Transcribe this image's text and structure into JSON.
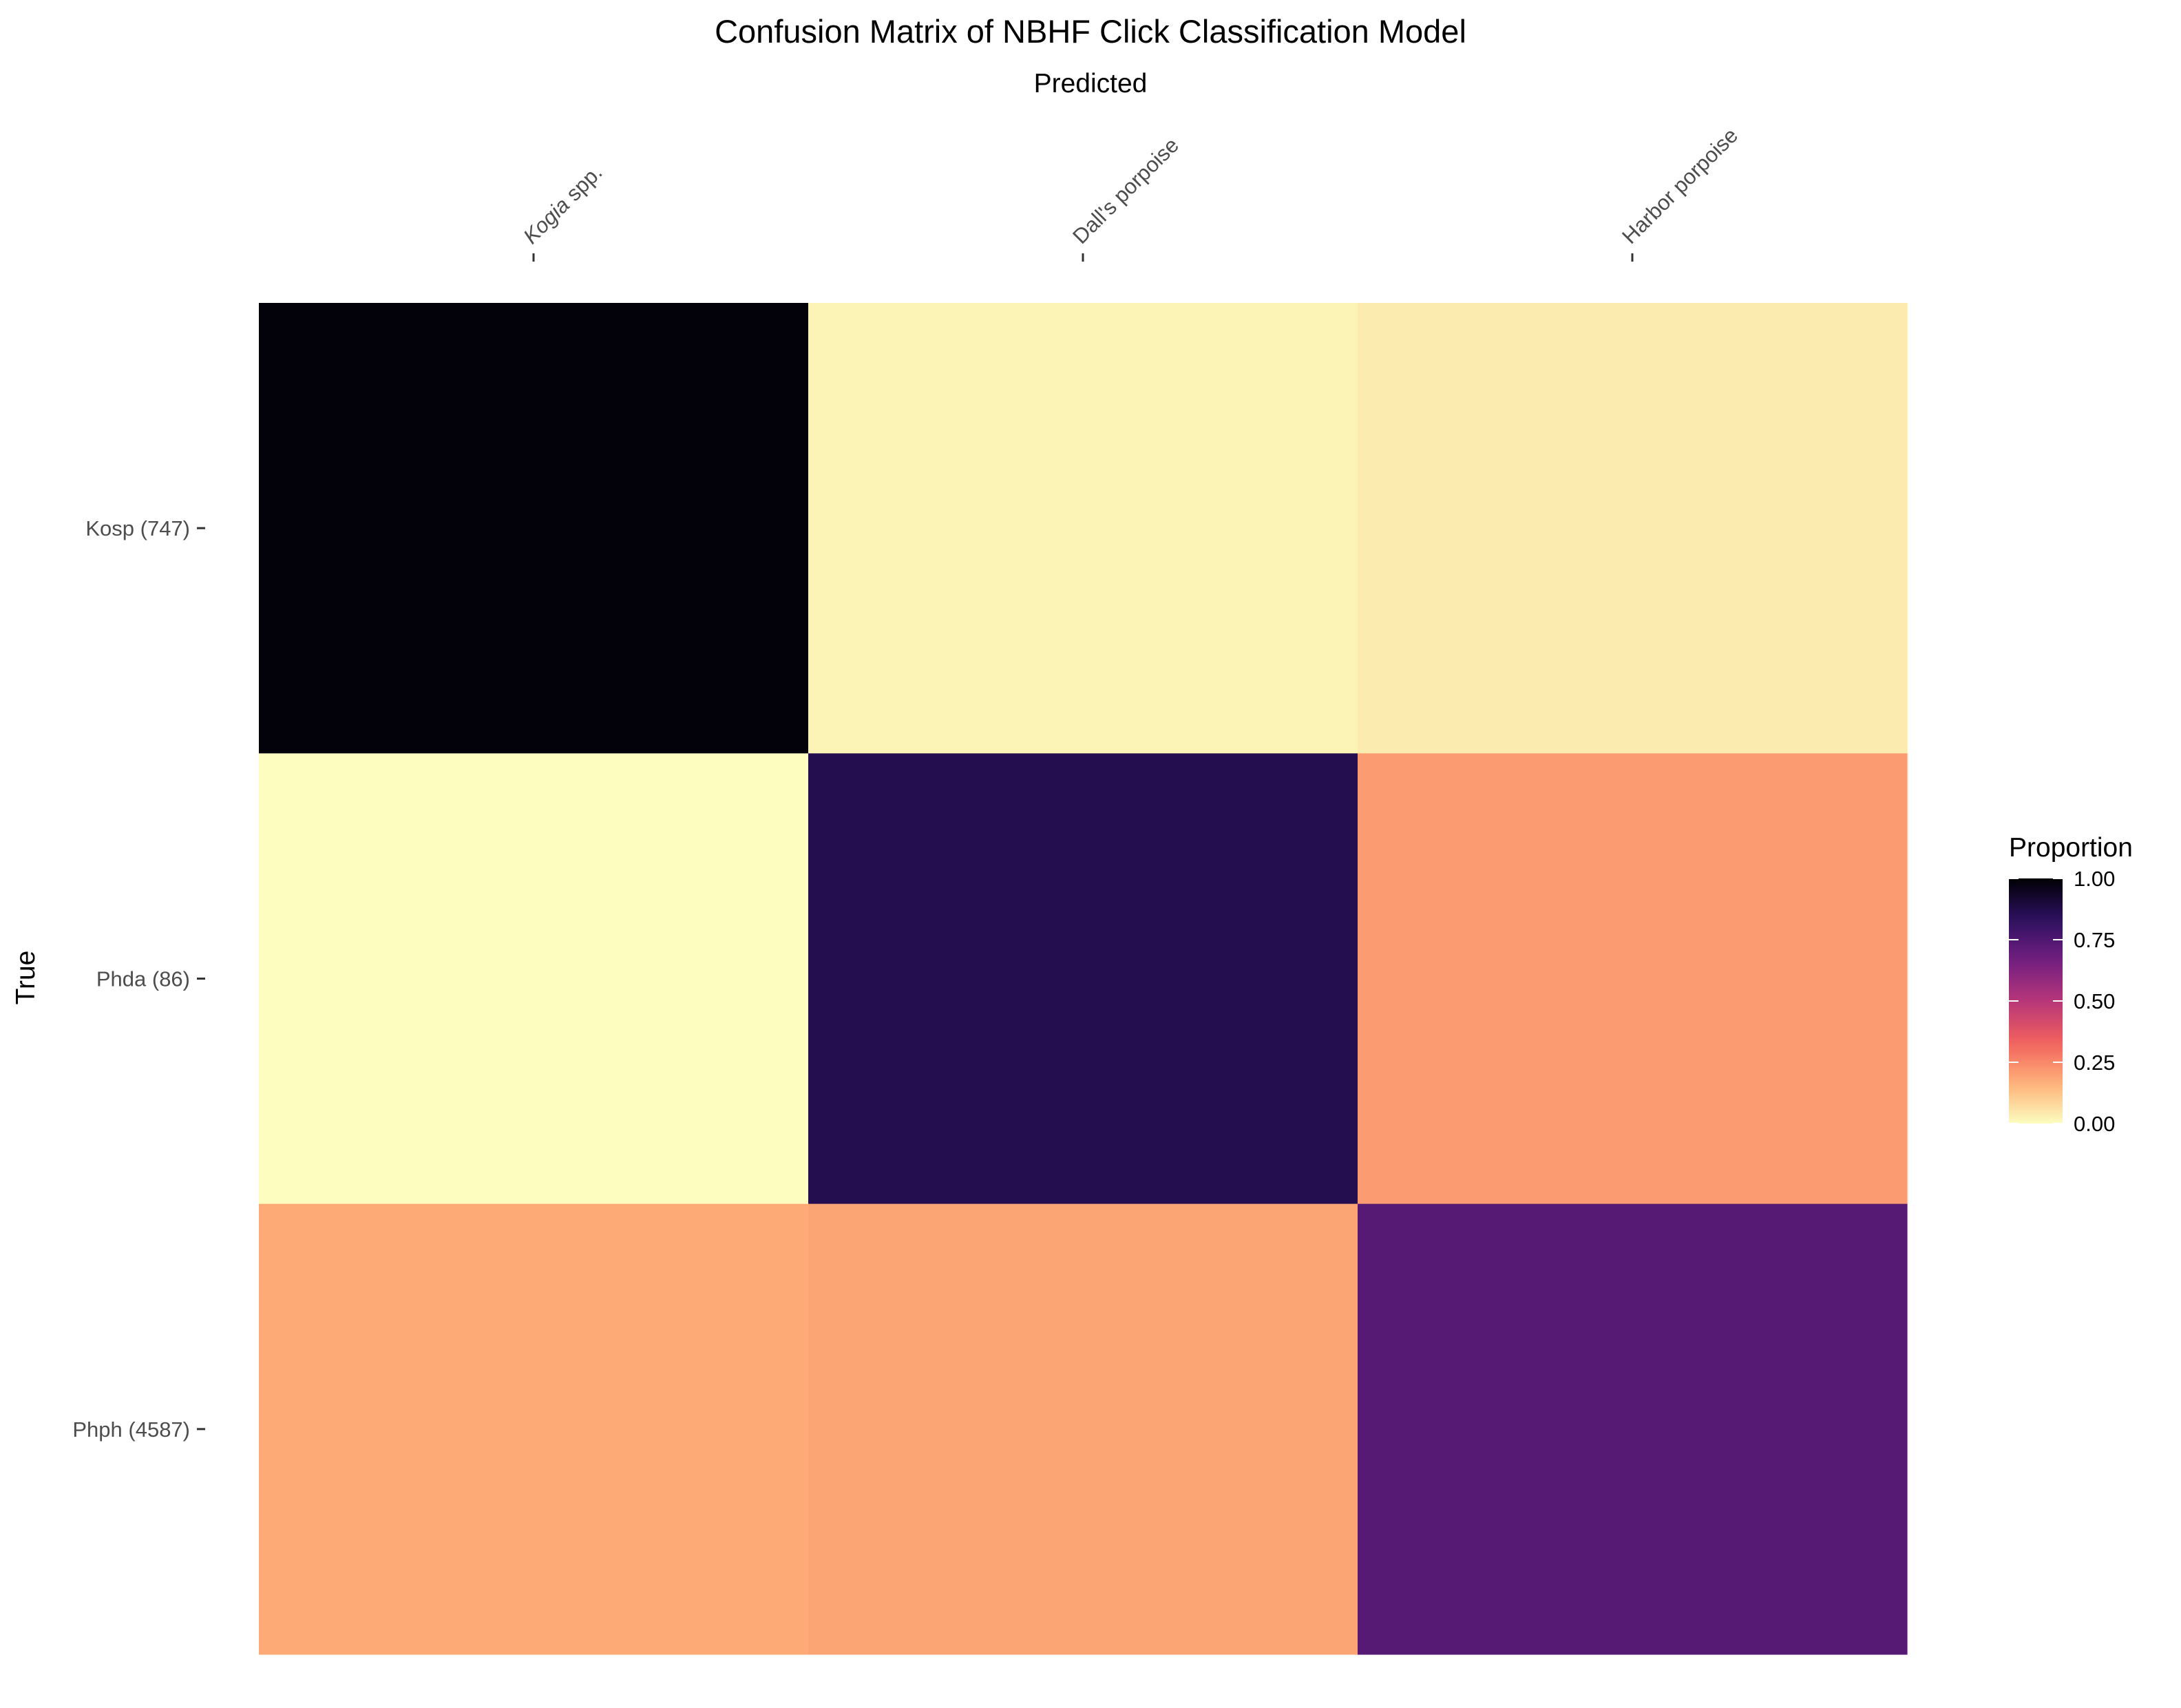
{
  "chart_data": {
    "type": "heatmap",
    "title": "Confusion Matrix of NBHF Click Classification Model",
    "xlabel": "Predicted",
    "ylabel": "True",
    "x_categories": [
      {
        "italic": "Kogia",
        "rest": " spp."
      },
      {
        "italic": "",
        "rest": "Dall's porpoise"
      },
      {
        "italic": "",
        "rest": "Harbor porpoise"
      }
    ],
    "y_categories": [
      "Kosp (747)",
      "Phda (86)",
      "Phph (4587)"
    ],
    "values": [
      [
        0.99,
        0.02,
        0.04
      ],
      [
        0.0,
        0.86,
        0.21
      ],
      [
        0.18,
        0.19,
        0.73
      ]
    ],
    "legend": {
      "title": "Proportion",
      "range": [
        0,
        1
      ],
      "tick_labels": [
        "0.00",
        "0.25",
        "0.50",
        "0.75",
        "1.00"
      ],
      "tick_values": [
        0,
        0.25,
        0.5,
        0.75,
        1.0
      ],
      "placement": "right"
    },
    "colorscale": [
      "#fcfdbf",
      "#feb078",
      "#f1605d",
      "#b63679",
      "#721f81",
      "#2c115f",
      "#000004"
    ],
    "grid": false
  }
}
